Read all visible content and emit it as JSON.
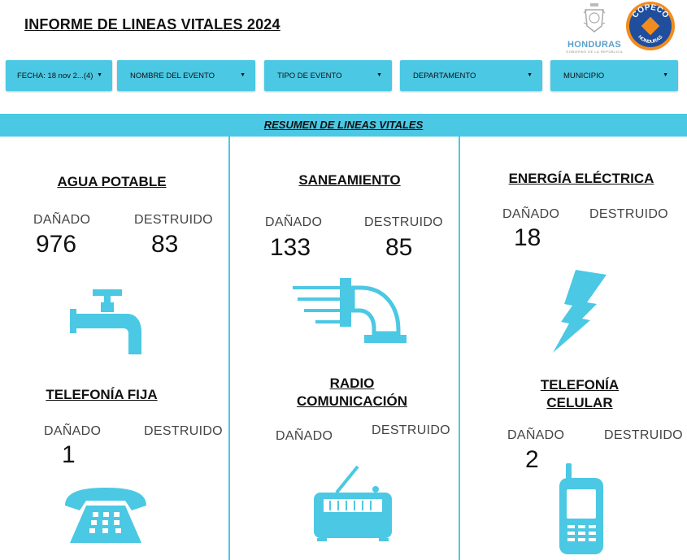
{
  "header": {
    "title": "INFORME DE LINEAS VITALES 2024",
    "logo_honduras_text": "HONDURAS",
    "logo_honduras_sub": "GOBIERNO DE LA REPÚBLICA",
    "logo_copeco_text": "COPECO",
    "logo_copeco_sub": "HONDURAS"
  },
  "filters": {
    "fecha": "FECHA: 18 nov 2...(4)",
    "evento": "NOMBRE DEL EVENTO",
    "tipo": "TIPO DE EVENTO",
    "departamento": "DEPARTAMENTO",
    "municipio": "MUNICIPIO"
  },
  "section_title": "RESUMEN DE LINEAS VITALES",
  "labels": {
    "danado": "DAÑADO",
    "destruido": "DESTRUIDO"
  },
  "cards": {
    "agua": {
      "title": "AGUA POTABLE",
      "danado": "976",
      "destruido": "83",
      "icon": "water-faucet-icon"
    },
    "saneamiento": {
      "title": "SANEAMIENTO",
      "danado": "133",
      "destruido": "85",
      "icon": "drain-pipe-icon"
    },
    "energia": {
      "title": "ENERGÍA ELÉCTRICA",
      "danado": "18",
      "icon": "lightning-bolt-icon"
    },
    "telefonia_fija": {
      "title": "TELEFONÍA FIJA",
      "danado": "1",
      "icon": "desk-phone-icon"
    },
    "radio": {
      "title_line1": "RADIO",
      "title_line2": "COMUNICACIÓN",
      "icon": "radio-icon"
    },
    "telefonia_celular": {
      "title_line1": "TELEFONÍA",
      "title_line2": "CELULAR",
      "danado": "2",
      "icon": "cell-phone-icon"
    }
  },
  "colors": {
    "accent": "#4bc8e3",
    "copeco_orange": "#f28c1e",
    "copeco_blue": "#1f4e9c",
    "honduras_blue": "#5a9fc8"
  }
}
